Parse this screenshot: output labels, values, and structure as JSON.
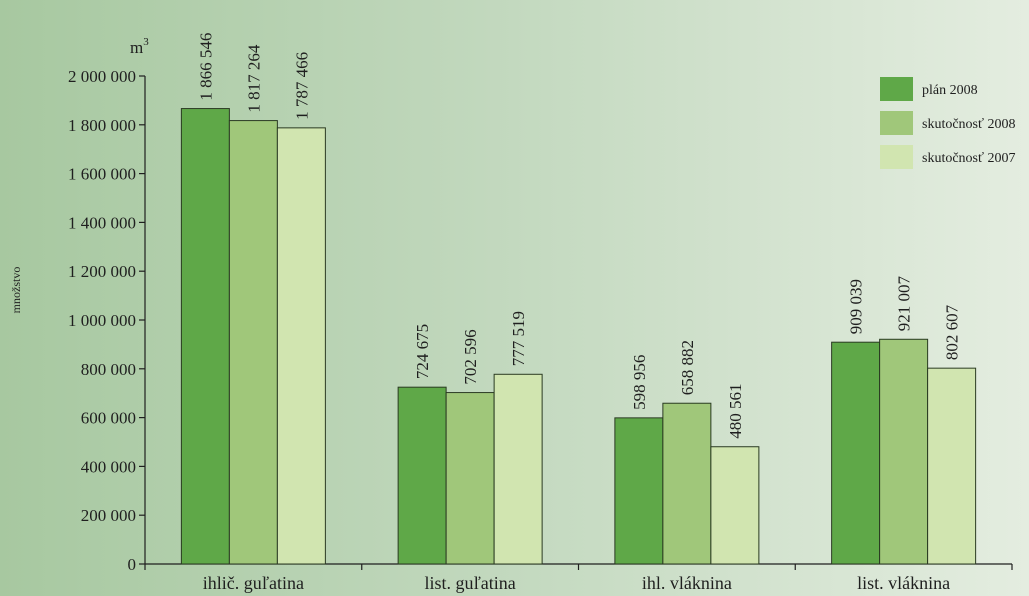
{
  "chart_data": {
    "type": "bar",
    "ylabel": "množstvo",
    "unit": {
      "base": "m",
      "exponent": "3"
    },
    "ylim": [
      0,
      2000000
    ],
    "yticks": [
      0,
      200000,
      400000,
      600000,
      800000,
      1000000,
      1200000,
      1400000,
      1600000,
      1800000,
      2000000
    ],
    "ytick_labels": [
      "0",
      "200 000",
      "400 000",
      "600 000",
      "800 000",
      "1 000 000",
      "1 200 000",
      "1 400 000",
      "1 600 000",
      "1 800 000",
      "2 000 000"
    ],
    "categories": [
      "ihlič. guľatina",
      "list. guľatina",
      "ihl. vláknina",
      "list. vláknina"
    ],
    "series": [
      {
        "name": "plán 2008",
        "color": "#5fa848",
        "values": [
          1866546,
          724675,
          598956,
          909039
        ],
        "labels": [
          "1 866 546",
          "724 675",
          "598 956",
          "909 039"
        ]
      },
      {
        "name": "skutočnosť 2008",
        "color": "#a0c77a",
        "values": [
          1817264,
          702596,
          658882,
          921007
        ],
        "labels": [
          "1 817 264",
          "702 596",
          "658 882",
          "921 007"
        ]
      },
      {
        "name": "skutočnosť 2007",
        "color": "#d1e5b0",
        "values": [
          1787466,
          777519,
          480561,
          802607
        ],
        "labels": [
          "1 787 466",
          "777 519",
          "480 561",
          "802 607"
        ]
      }
    ],
    "grid": false,
    "legend_position": "top-right"
  }
}
